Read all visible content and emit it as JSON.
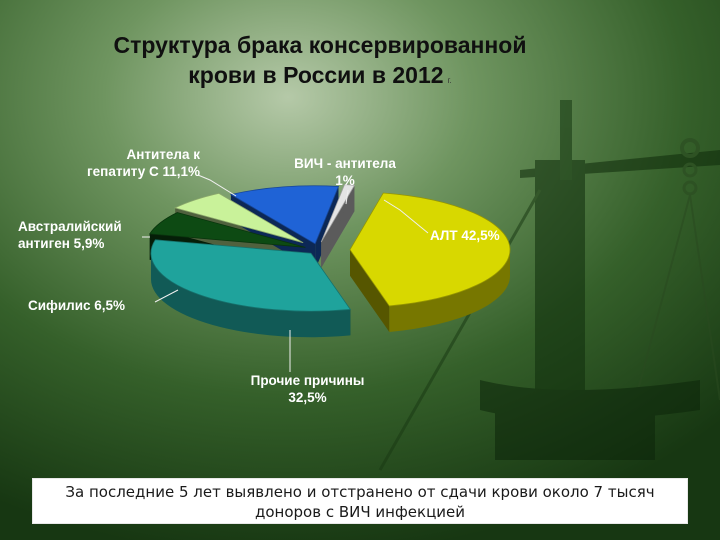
{
  "slide": {
    "title_line1": "Структура брака консервированной",
    "title_line2": "крови в России в 2012",
    "title_suffix": "г.",
    "note": "За последние 5 лет выявлено и отстранено от сдачи крови около 7 тысяч доноров с ВИЧ инфекцией"
  },
  "chart_data": {
    "type": "pie",
    "style": "3d-exploded",
    "title": "Структура брака консервированной крови в России в 2012",
    "slices": [
      {
        "key": "alt",
        "label_lines": [
          "АЛТ 42,5%"
        ],
        "value": 42.5,
        "color": "#d8d800"
      },
      {
        "key": "other",
        "label_lines": [
          "Прочие причины",
          "32,5%"
        ],
        "value": 32.5,
        "color": "#1fa39c"
      },
      {
        "key": "syph",
        "label_lines": [
          "Сифилис 6,5%"
        ],
        "value": 6.5,
        "color": "#0d4a13"
      },
      {
        "key": "aus",
        "label_lines": [
          "Австралийский",
          "антиген 5,9%"
        ],
        "value": 5.9,
        "color": "#c9f29a"
      },
      {
        "key": "hcv",
        "label_lines": [
          "Антитела к",
          "гепатиту С 11,1%"
        ],
        "value": 11.1,
        "color": "#1f63d6"
      },
      {
        "key": "hiv",
        "label_lines": [
          "ВИЧ - антитела",
          "1%"
        ],
        "value": 1.0,
        "color": "#e4e4e4"
      }
    ]
  }
}
